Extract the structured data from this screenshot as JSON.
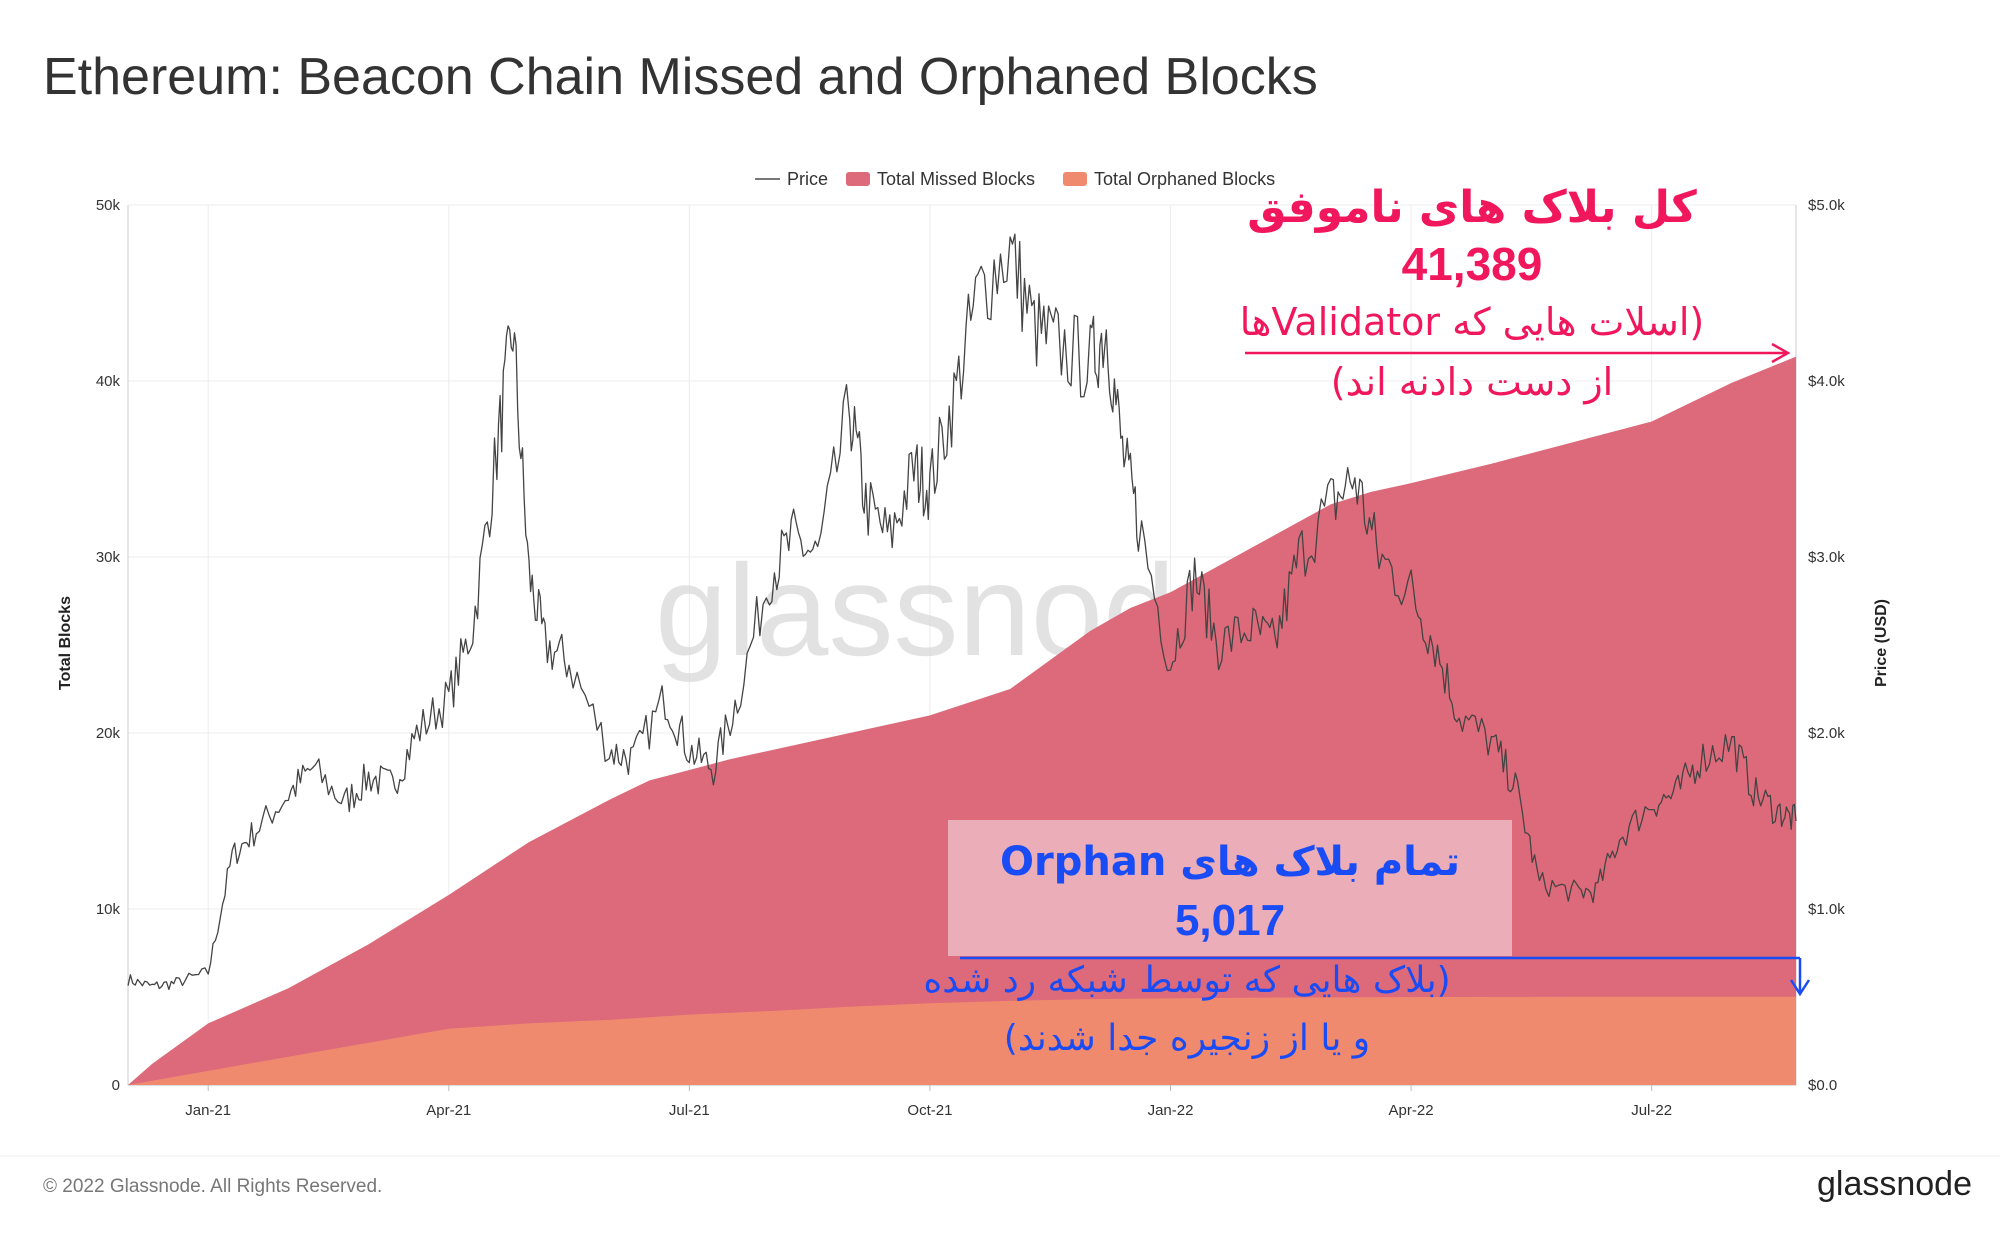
{
  "chart_data": {
    "type": "area",
    "title": "Ethereum: Beacon Chain Missed and Orphaned Blocks",
    "ylabel": "Total Blocks",
    "y2label": "Price (USD)",
    "xlabel": "",
    "ylim": [
      0,
      50000
    ],
    "y2lim": [
      0,
      5000
    ],
    "x_tick_labels": [
      "Jan-21",
      "Apr-21",
      "Jul-21",
      "Oct-21",
      "Jan-22",
      "Apr-22",
      "Jul-22"
    ],
    "x_tick_months": [
      1,
      4,
      7,
      10,
      13,
      16,
      19
    ],
    "y_tick_labels": [
      "0",
      "10k",
      "20k",
      "30k",
      "40k",
      "50k"
    ],
    "y_tick_values": [
      0,
      10000,
      20000,
      30000,
      40000,
      50000
    ],
    "y2_tick_labels": [
      "$0.0",
      "$1.0k",
      "$2.0k",
      "$3.0k",
      "$4.0k",
      "$5.0k"
    ],
    "y2_tick_values": [
      0,
      1000,
      2000,
      3000,
      4000,
      5000
    ],
    "legend": {
      "position": "top-center",
      "entries": [
        {
          "label": "Price",
          "color": "#777777",
          "kind": "line"
        },
        {
          "label": "Total Missed Blocks",
          "color": "#dc6a7a",
          "kind": "area"
        },
        {
          "label": "Total Orphaned Blocks",
          "color": "#f08a6f",
          "kind": "area"
        }
      ]
    },
    "x_unit": "months since Dec 1, 2020",
    "series": [
      {
        "name": "Total Missed Blocks",
        "axis": "left",
        "color": "#dc6a7a",
        "x": [
          0,
          0.3,
          1,
          2,
          3,
          4,
          5,
          6,
          6.5,
          7,
          7.5,
          8,
          9,
          10,
          11,
          12,
          12.5,
          13,
          14,
          15,
          15.5,
          16,
          17,
          18,
          19,
          20,
          20.8
        ],
        "values": [
          0,
          1200,
          3500,
          5500,
          8000,
          10800,
          13800,
          16200,
          17300,
          17900,
          18500,
          19000,
          20000,
          21000,
          22500,
          25800,
          27100,
          28000,
          30500,
          33000,
          33700,
          34200,
          35300,
          36500,
          37700,
          39900,
          41389
        ]
      },
      {
        "name": "Total Orphaned Blocks",
        "axis": "left",
        "color": "#f08a6f",
        "x": [
          0,
          1,
          2,
          3,
          4,
          5,
          6,
          7,
          8,
          9,
          10,
          11,
          12,
          13,
          14,
          15,
          16,
          17,
          18,
          19,
          20,
          20.8
        ],
        "values": [
          0,
          800,
          1600,
          2400,
          3200,
          3500,
          3700,
          4000,
          4200,
          4450,
          4650,
          4780,
          4880,
          4920,
          4960,
          4980,
          4995,
          5005,
          5010,
          5013,
          5015,
          5017
        ]
      },
      {
        "name": "Price",
        "axis": "right",
        "color": "#555555",
        "x": [
          0,
          0.3,
          0.6,
          1,
          1.3,
          1.6,
          2,
          2.3,
          2.7,
          3,
          3.3,
          3.6,
          4,
          4.3,
          4.6,
          4.8,
          5,
          5.2,
          5.5,
          6,
          6.3,
          6.7,
          7,
          7.3,
          7.6,
          8,
          8.3,
          8.6,
          9,
          9.2,
          9.5,
          9.8,
          10,
          10.3,
          10.6,
          11,
          11.3,
          11.6,
          12,
          12.2,
          12.4,
          12.6,
          13,
          13.3,
          13.6,
          14,
          14.3,
          14.6,
          15,
          15.3,
          15.6,
          16,
          16.3,
          16.6,
          17,
          17.3,
          17.6,
          18,
          18.3,
          18.6,
          19,
          19.3,
          19.6,
          20,
          20.3,
          20.6,
          20.8
        ],
        "values": [
          600,
          560,
          580,
          640,
          1300,
          1450,
          1650,
          1800,
          1600,
          1750,
          1700,
          2000,
          2200,
          2600,
          3600,
          4300,
          2900,
          2500,
          2400,
          1900,
          1850,
          2200,
          1900,
          1800,
          2200,
          2900,
          3100,
          3000,
          3850,
          3300,
          3100,
          3500,
          3400,
          3900,
          4500,
          4750,
          4300,
          4200,
          4100,
          4300,
          3600,
          3200,
          2400,
          2900,
          2500,
          2600,
          2500,
          3000,
          3300,
          3450,
          3000,
          2800,
          2500,
          2100,
          1950,
          1700,
          1150,
          1100,
          1100,
          1400,
          1600,
          1650,
          1850,
          1950,
          1650,
          1550,
          1500
        ]
      }
    ]
  },
  "annotations": {
    "missed": {
      "title": "کل بلاک های ناموفق",
      "value": "41,389",
      "desc_line1": "(اسلات هایی که Validatorها",
      "desc_line2": "از دست دادنه اند)",
      "color": "#f0175c"
    },
    "orphan": {
      "title": "تمام بلاک های Orphan",
      "value": "5,017",
      "desc_line1": "(بلاک هایی که توسط شبکه رد شده",
      "desc_line2": "و یا از زنجیره جدا شدند)",
      "color": "#1a4cf5",
      "box_color": "#ecb3bd"
    }
  },
  "watermark": "glassnode",
  "footer": {
    "copyright": "© 2022 Glassnode. All Rights Reserved.",
    "brand": "glassnode"
  }
}
